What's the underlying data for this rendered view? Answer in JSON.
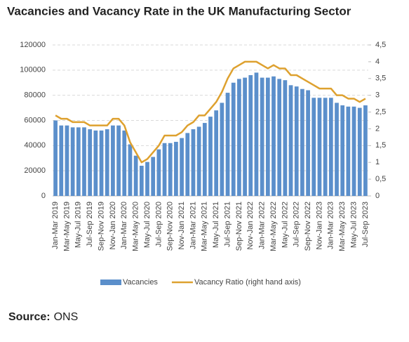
{
  "chart_data": {
    "type": "bar-line",
    "title": "Vacancies and Vacancy Rate in the UK Manufacturing Sector",
    "categories": [
      "Jan-Mar 2019",
      null,
      "Mar-May 2019",
      null,
      "May-Jul 2019",
      null,
      "Jul-Sep 2019",
      null,
      "Sep-Nov 2019",
      null,
      "Nov-Jan 2020",
      null,
      "Jan-Mar 2020",
      null,
      "Mar-May 2020",
      null,
      "May-Jul 2020",
      null,
      "Jul-Sep 2020",
      null,
      "Sep-Nov 2020",
      null,
      "Nov-Jan 2021",
      null,
      "Jan-Mar 2021",
      null,
      "Mar-May 2021",
      null,
      "May-Jul 2021",
      null,
      "Jul-Sep 2021",
      null,
      "Sep-Nov 2021",
      null,
      "Nov-Jan 2022",
      null,
      "Jan-Mar 2022",
      null,
      "Mar-May 2022",
      null,
      "May-Jul 2022",
      null,
      "Jul-Sep 2022",
      null,
      "Sep-Nov 2022",
      null,
      "Nov-Jan 2023",
      null,
      "Jan-Mar 2023",
      null,
      "Mar-May 2023",
      null,
      "May-Jul 2023",
      null,
      "Jul-Sep 2023"
    ],
    "series": [
      {
        "name": "Vacancies",
        "type": "bar",
        "color": "#5b8fcb",
        "values": [
          60000,
          56000,
          56000,
          54500,
          54500,
          54500,
          53000,
          52000,
          52000,
          53000,
          56000,
          56000,
          52000,
          41000,
          32000,
          24000,
          27000,
          31000,
          37000,
          42000,
          42000,
          43000,
          46000,
          50000,
          53000,
          55000,
          58000,
          63000,
          68000,
          74000,
          82000,
          90000,
          93000,
          94000,
          96000,
          98000,
          94000,
          94000,
          95000,
          93000,
          92000,
          88000,
          87000,
          85000,
          84000,
          78000,
          78000,
          78000,
          78000,
          74000,
          72000,
          71000,
          71000,
          70000,
          72000
        ]
      },
      {
        "name": "Vacancy Ratio (right hand axis)",
        "type": "line",
        "axis": "y2",
        "color": "#dea12f",
        "values": [
          2.4,
          2.3,
          2.3,
          2.2,
          2.2,
          2.2,
          2.1,
          2.1,
          2.1,
          2.1,
          2.3,
          2.3,
          2.1,
          1.6,
          1.3,
          1.0,
          1.1,
          1.3,
          1.5,
          1.8,
          1.8,
          1.8,
          1.9,
          2.1,
          2.2,
          2.4,
          2.4,
          2.6,
          2.8,
          3.1,
          3.5,
          3.8,
          3.9,
          4.0,
          4.0,
          4.0,
          3.9,
          3.8,
          3.9,
          3.8,
          3.8,
          3.6,
          3.6,
          3.5,
          3.4,
          3.3,
          3.2,
          3.2,
          3.2,
          3.0,
          3.0,
          2.9,
          2.9,
          2.8,
          2.9
        ]
      }
    ],
    "ylim": [
      0,
      120000
    ],
    "yticks": [
      0,
      20000,
      40000,
      60000,
      80000,
      100000,
      120000
    ],
    "y2lim": [
      0,
      4.5
    ],
    "y2ticks": [
      0,
      {
        "value": 0.5,
        "label": "0,5"
      },
      1,
      {
        "value": 1.5,
        "label": "1,5"
      },
      2,
      {
        "value": 2.5,
        "label": "2,5"
      },
      3,
      {
        "value": 3.5,
        "label": "3,5"
      },
      4,
      {
        "value": 4.5,
        "label": "4,5"
      }
    ],
    "grid": true,
    "legend": "bottom",
    "source_label": "Source:",
    "source": "ONS"
  }
}
